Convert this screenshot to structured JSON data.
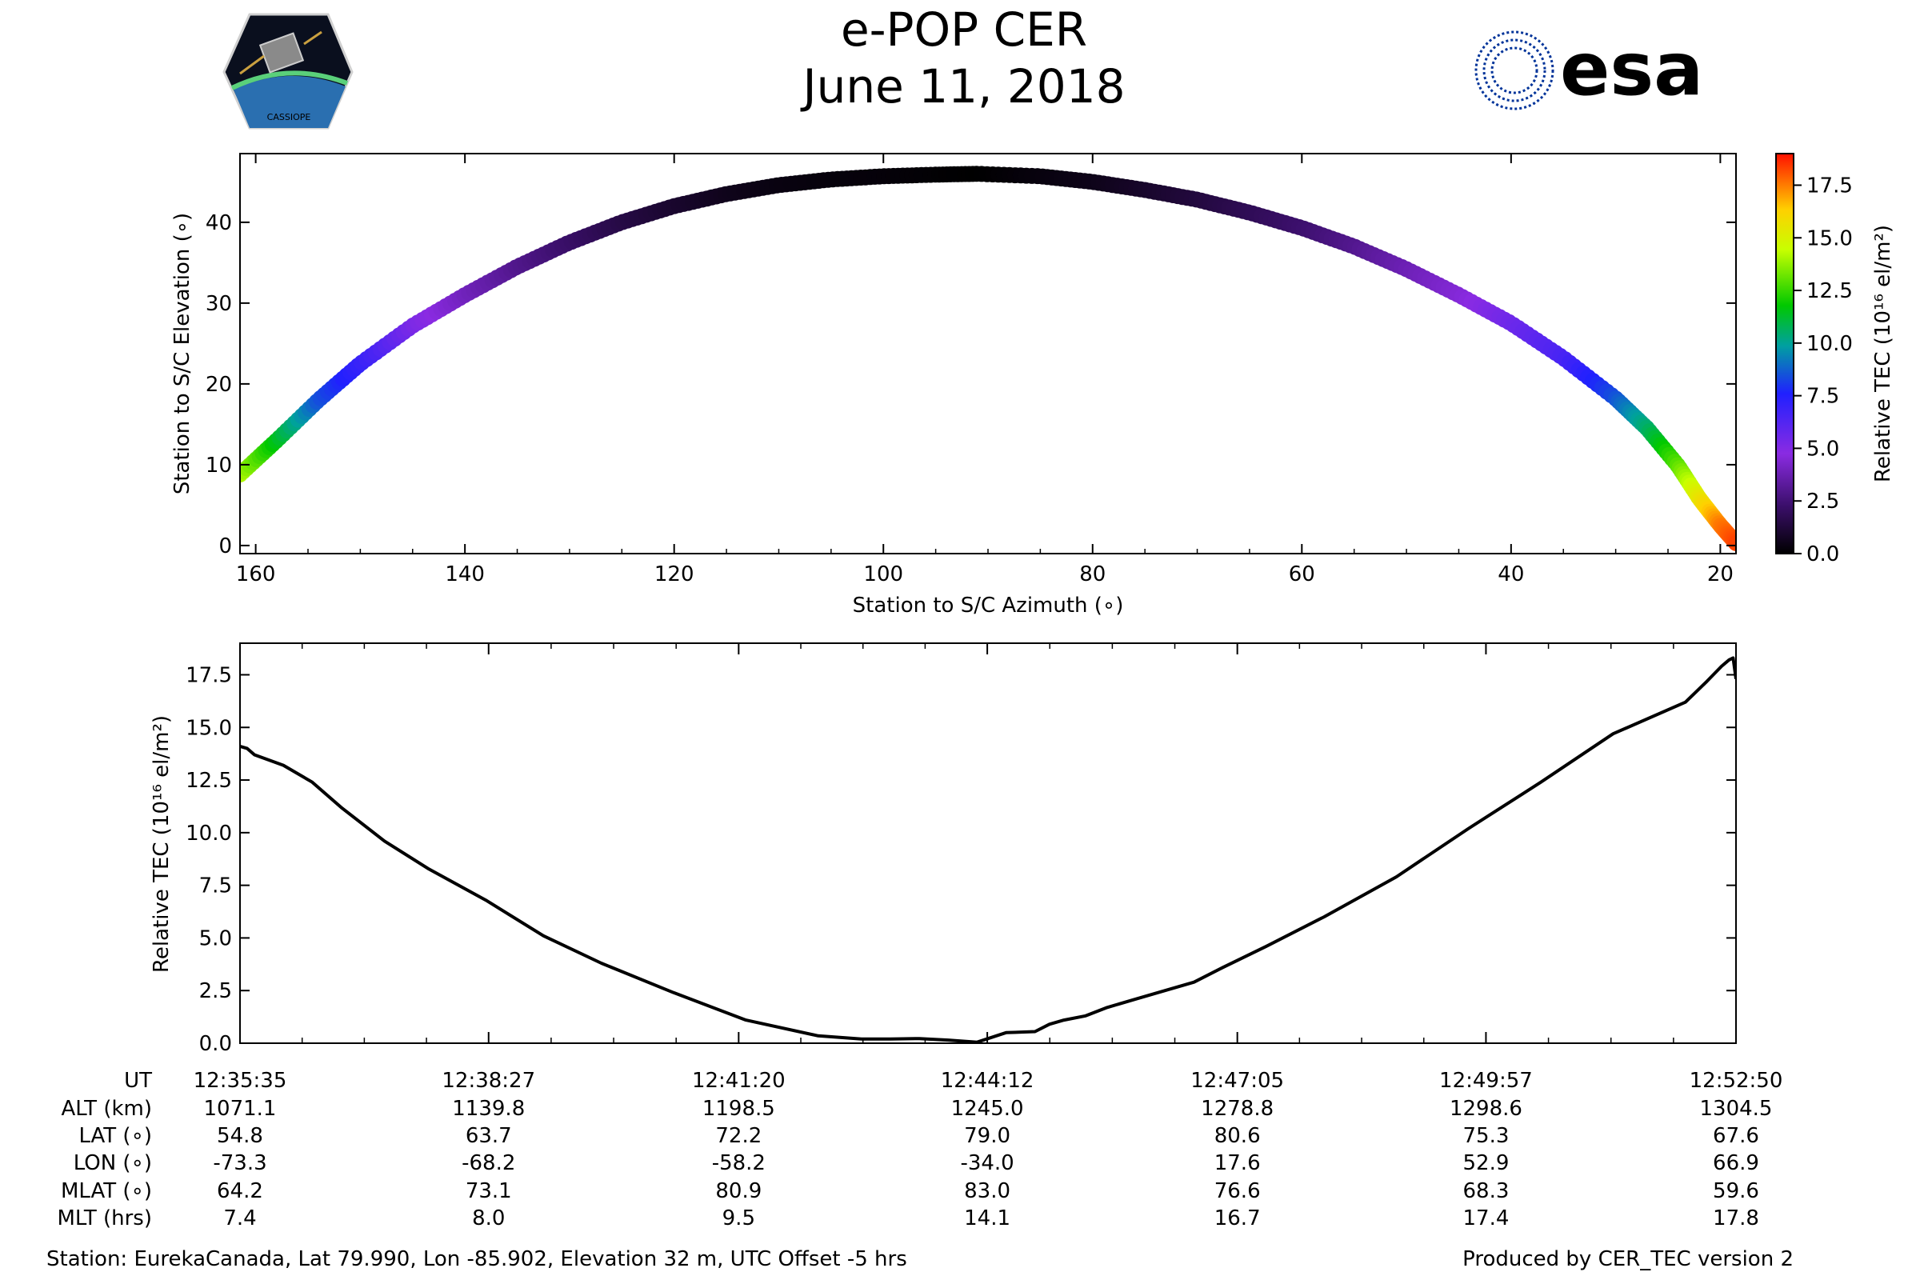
{
  "header": {
    "title": "e-POP CER",
    "date": "June 11, 2018",
    "left_logo_text": "CASSIOPE",
    "right_logo_text": "esa"
  },
  "colors": {
    "background": "#ffffff",
    "axis": "#000000",
    "tec_line": "#000000",
    "esa_blue": "#003399"
  },
  "chart_data": [
    {
      "type": "scatter",
      "name": "elevation-azimuth",
      "xlabel": "Station to S/C Azimuth (∘)",
      "ylabel": "Station to S/C Elevation (∘)",
      "xlim": [
        161.5,
        18.5
      ],
      "ylim": [
        -1,
        48.5
      ],
      "xticks": [
        160,
        140,
        120,
        100,
        80,
        60,
        40,
        20
      ],
      "yticks": [
        0,
        10,
        20,
        30,
        40
      ],
      "colorbar": {
        "label": "Relative TEC (10¹⁶ el/m²)",
        "range": [
          0,
          19
        ],
        "ticks": [
          "0.0",
          "2.5",
          "5.0",
          "7.5",
          "10.0",
          "12.5",
          "15.0",
          "17.5"
        ],
        "colormap": "gnuplot-rainbow"
      },
      "points": [
        {
          "az": 161.5,
          "el": 8.8,
          "tec": 14.1
        },
        {
          "az": 158,
          "el": 13.0,
          "tec": 11.5
        },
        {
          "az": 154,
          "el": 18.0,
          "tec": 8.5
        },
        {
          "az": 150,
          "el": 22.5,
          "tec": 7.0
        },
        {
          "az": 145,
          "el": 27.2,
          "tec": 5.2
        },
        {
          "az": 140,
          "el": 31.0,
          "tec": 4.0
        },
        {
          "az": 135,
          "el": 34.5,
          "tec": 3.0
        },
        {
          "az": 130,
          "el": 37.5,
          "tec": 2.2
        },
        {
          "az": 125,
          "el": 40.0,
          "tec": 1.5
        },
        {
          "az": 120,
          "el": 42.0,
          "tec": 1.0
        },
        {
          "az": 115,
          "el": 43.5,
          "tec": 0.6
        },
        {
          "az": 110,
          "el": 44.6,
          "tec": 0.35
        },
        {
          "az": 105,
          "el": 45.3,
          "tec": 0.25
        },
        {
          "az": 100,
          "el": 45.7,
          "tec": 0.2
        },
        {
          "az": 95,
          "el": 45.9,
          "tec": 0.1
        },
        {
          "az": 91,
          "el": 46.0,
          "tec": 0.0
        },
        {
          "az": 85,
          "el": 45.7,
          "tec": 0.3
        },
        {
          "az": 80,
          "el": 45.0,
          "tec": 0.5
        },
        {
          "az": 75,
          "el": 44.0,
          "tec": 0.9
        },
        {
          "az": 70,
          "el": 42.8,
          "tec": 1.3
        },
        {
          "az": 65,
          "el": 41.2,
          "tec": 1.8
        },
        {
          "az": 60,
          "el": 39.3,
          "tec": 2.3
        },
        {
          "az": 55,
          "el": 37.0,
          "tec": 3.0
        },
        {
          "az": 50,
          "el": 34.2,
          "tec": 3.8
        },
        {
          "az": 45,
          "el": 31.0,
          "tec": 4.5
        },
        {
          "az": 40,
          "el": 27.5,
          "tec": 5.5
        },
        {
          "az": 35,
          "el": 23.2,
          "tec": 6.5
        },
        {
          "az": 30,
          "el": 18.2,
          "tec": 8.5
        },
        {
          "az": 27,
          "el": 14.5,
          "tec": 10.5
        },
        {
          "az": 24,
          "el": 9.8,
          "tec": 13.0
        },
        {
          "az": 22,
          "el": 5.8,
          "tec": 15.5
        },
        {
          "az": 20,
          "el": 2.5,
          "tec": 17.5
        },
        {
          "az": 18.5,
          "el": 0.3,
          "tec": 18.3
        }
      ]
    },
    {
      "type": "line",
      "name": "relative-tec-time-series",
      "xlabel": "",
      "ylabel": "Relative TEC (10¹⁶ el/m²)",
      "xlim": [
        0,
        1035
      ],
      "ylim": [
        0,
        19
      ],
      "yticks": [
        "0.0",
        "2.5",
        "5.0",
        "7.5",
        "10.0",
        "12.5",
        "15.0",
        "17.5"
      ],
      "x_unit": "seconds since 12:35:35",
      "x": [
        0,
        5,
        10,
        30,
        50,
        70,
        100,
        130,
        170,
        210,
        250,
        300,
        350,
        400,
        430,
        450,
        470,
        490,
        510,
        530,
        550,
        560,
        570,
        585,
        600,
        620,
        640,
        660,
        680,
        710,
        750,
        800,
        850,
        900,
        950,
        1000,
        1015,
        1025,
        1030,
        1033,
        1035
      ],
      "y": [
        14.1,
        14.0,
        13.7,
        13.2,
        12.4,
        11.2,
        9.6,
        8.3,
        6.8,
        5.1,
        3.8,
        2.4,
        1.1,
        0.35,
        0.2,
        0.2,
        0.22,
        0.15,
        0.05,
        0.5,
        0.55,
        0.9,
        1.1,
        1.3,
        1.7,
        2.1,
        2.5,
        2.9,
        3.6,
        4.6,
        6.0,
        7.9,
        10.2,
        12.4,
        14.7,
        16.2,
        17.2,
        17.9,
        18.2,
        18.3,
        17.3
      ],
      "table": {
        "row_labels": [
          "UT",
          "ALT (km)",
          "LAT (∘)",
          "LON (∘)",
          "MLAT (∘)",
          "MLT (hrs)"
        ],
        "columns": [
          {
            "t": 0,
            "ut": "12:35:35",
            "alt": "1071.1",
            "lat": "54.8",
            "lon": "-73.3",
            "mlat": "64.2",
            "mlt": "7.4"
          },
          {
            "t": 172,
            "ut": "12:38:27",
            "alt": "1139.8",
            "lat": "63.7",
            "lon": "-68.2",
            "mlat": "73.1",
            "mlt": "8.0"
          },
          {
            "t": 345,
            "ut": "12:41:20",
            "alt": "1198.5",
            "lat": "72.2",
            "lon": "-58.2",
            "mlat": "80.9",
            "mlt": "9.5"
          },
          {
            "t": 517,
            "ut": "12:44:12",
            "alt": "1245.0",
            "lat": "79.0",
            "lon": "-34.0",
            "mlat": "83.0",
            "mlt": "14.1"
          },
          {
            "t": 690,
            "ut": "12:47:05",
            "alt": "1278.8",
            "lat": "80.6",
            "lon": "17.6",
            "mlat": "76.6",
            "mlt": "16.7"
          },
          {
            "t": 862,
            "ut": "12:49:57",
            "alt": "1298.6",
            "lat": "75.3",
            "lon": "52.9",
            "mlat": "68.3",
            "mlt": "17.4"
          },
          {
            "t": 1035,
            "ut": "12:52:50",
            "alt": "1304.5",
            "lat": "67.6",
            "lon": "66.9",
            "mlat": "59.6",
            "mlt": "17.8"
          }
        ]
      }
    }
  ],
  "footer": {
    "station": "Station: EurekaCanada, Lat 79.990, Lon -85.902, Elevation 32 m, UTC Offset -5 hrs",
    "produced_by": "Produced by CER_TEC version 2"
  }
}
